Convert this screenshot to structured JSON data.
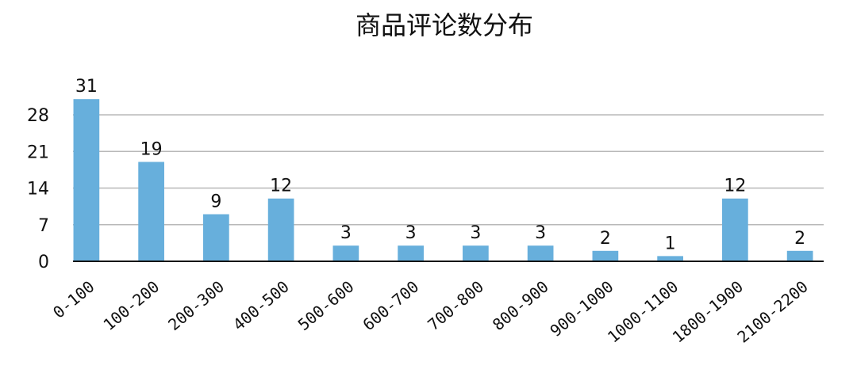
{
  "chart_data": {
    "type": "bar",
    "title": "商品评论数分布",
    "categories": [
      "0-100",
      "100-200",
      "200-300",
      "400-500",
      "500-600",
      "600-700",
      "700-800",
      "800-900",
      "900-1000",
      "1000-1100",
      "1800-1900",
      "2100-2200"
    ],
    "values": [
      31,
      19,
      9,
      12,
      3,
      3,
      3,
      3,
      2,
      1,
      12,
      2
    ],
    "color": "#67afdc",
    "ylim": [
      0,
      32
    ],
    "yticks": [
      0,
      7,
      14,
      21,
      28
    ],
    "grid": true
  }
}
